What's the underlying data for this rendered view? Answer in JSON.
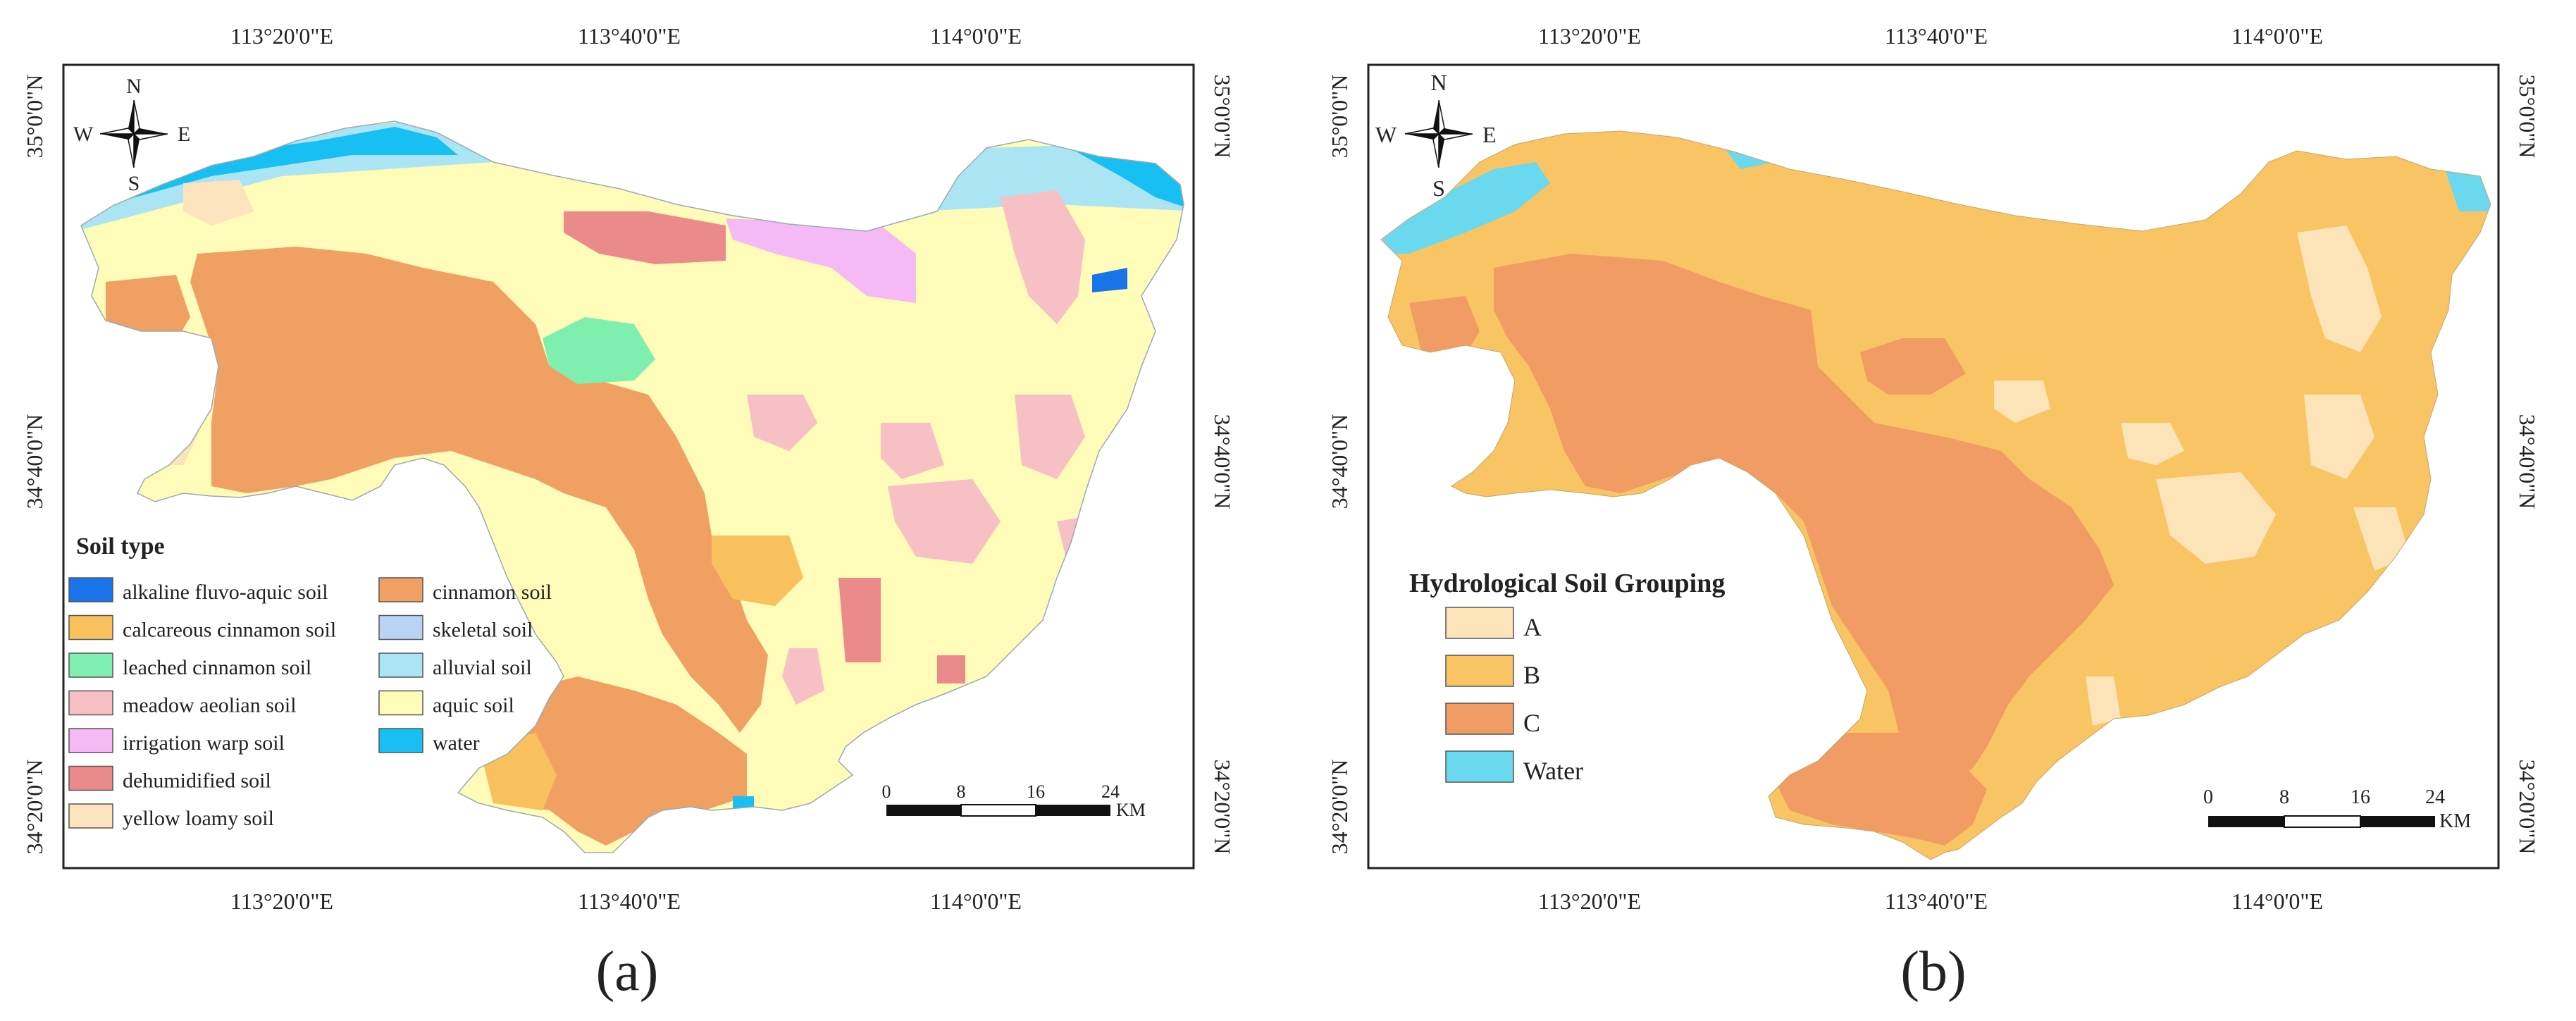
{
  "panel_a": {
    "label": "(a)",
    "top_lon_labels": [
      "113°20'0\"E",
      "113°40'0\"E",
      "114°0'0\"E"
    ],
    "bottom_lon_labels": [
      "113°20'0\"E",
      "113°40'0\"E",
      "114°0'0\"E"
    ],
    "left_lat_labels": [
      "35°0'0\"N",
      "34°40'0\"N",
      "34°20'0\"N"
    ],
    "right_lat_labels": [
      "35°0'0\"N",
      "34°40'0\"N",
      "34°20'0\"N"
    ],
    "compass": {
      "n": "N",
      "s": "S",
      "e": "E",
      "w": "W"
    },
    "legend": {
      "title": "Soil type",
      "items": [
        {
          "label": "alkaline fluvo-aquic soil",
          "color": "#1874e8"
        },
        {
          "label": "calcareous cinnamon soil",
          "color": "#f9c05e"
        },
        {
          "label": "leached cinnamon soil",
          "color": "#7fefb0"
        },
        {
          "label": "meadow aeolian soil",
          "color": "#f7c0c4"
        },
        {
          "label": "irrigation warp soil",
          "color": "#f5b9f5"
        },
        {
          "label": "dehumidified soil",
          "color": "#ea8a8a"
        },
        {
          "label": "yellow loamy soil",
          "color": "#fbe3be"
        },
        {
          "label": "cinnamon soil",
          "color": "#f1a064"
        },
        {
          "label": "skeletal soil",
          "color": "#b9d3f5"
        },
        {
          "label": "alluvial soil",
          "color": "#abe4f3"
        },
        {
          "label": "aquic soil",
          "color": "#fefcb8"
        },
        {
          "label": "water",
          "color": "#18bff2"
        }
      ]
    },
    "scale_bar": {
      "ticks": [
        "0",
        "8",
        "16",
        "24"
      ],
      "unit": "KM"
    }
  },
  "panel_b": {
    "label": "(b)",
    "top_lon_labels": [
      "113°20'0\"E",
      "113°40'0\"E",
      "114°0'0\"E"
    ],
    "bottom_lon_labels": [
      "113°20'0\"E",
      "113°40'0\"E",
      "114°0'0\"E"
    ],
    "left_lat_labels": [
      "35°0'0\"N",
      "34°40'0\"N",
      "34°20'0\"N"
    ],
    "right_lat_labels": [
      "35°0'0\"N",
      "34°40'0\"N",
      "34°20'0\"N"
    ],
    "compass": {
      "n": "N",
      "s": "S",
      "e": "E",
      "w": "W"
    },
    "legend": {
      "title": "Hydrological Soil Grouping",
      "items": [
        {
          "label": "A",
          "color": "#fce3b8"
        },
        {
          "label": "B",
          "color": "#f9c463"
        },
        {
          "label": "C",
          "color": "#f09c64"
        },
        {
          "label": "Water",
          "color": "#6ad8ef"
        }
      ]
    },
    "scale_bar": {
      "ticks": [
        "0",
        "8",
        "16",
        "24"
      ],
      "unit": "KM"
    }
  }
}
